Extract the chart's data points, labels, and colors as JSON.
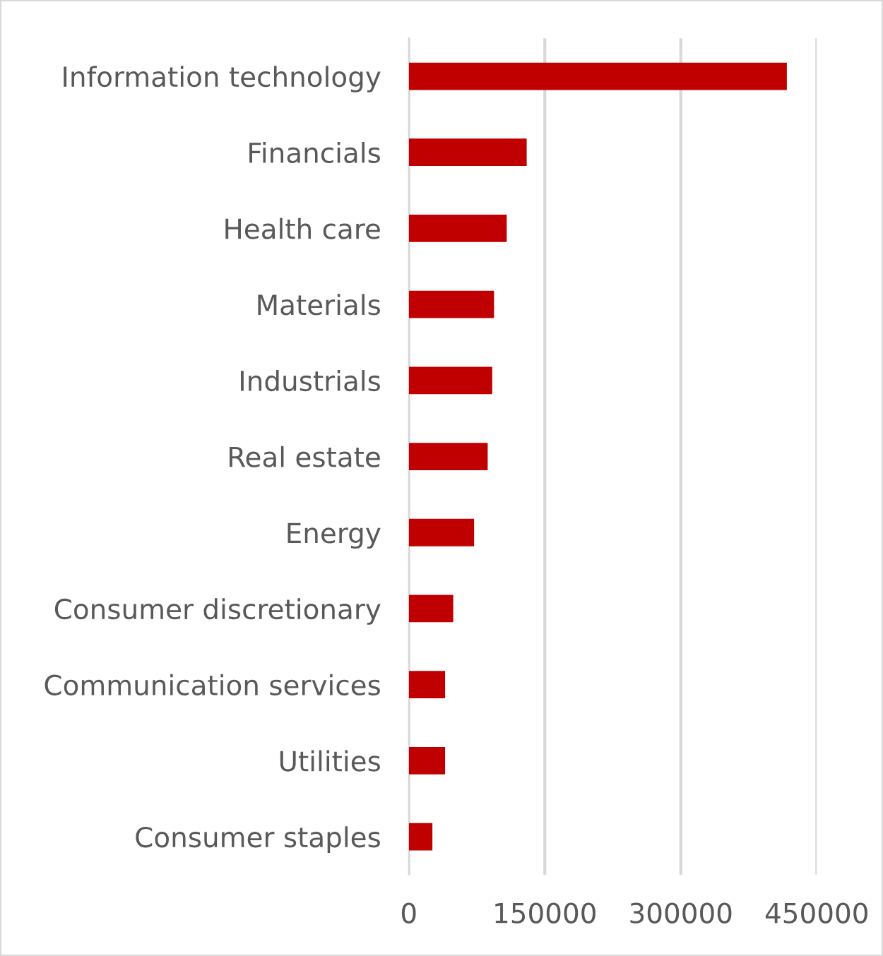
{
  "chart_data": {
    "type": "bar",
    "orientation": "horizontal",
    "categories": [
      "Information technology",
      "Financials",
      "Health care",
      "Materials",
      "Industrials",
      "Real estate",
      "Energy",
      "Consumer discretionary",
      "Communication services",
      "Utilities",
      "Consumer staples"
    ],
    "values": [
      417000,
      130000,
      108000,
      94000,
      92000,
      87000,
      72000,
      49000,
      40000,
      40000,
      26000
    ],
    "color": "#c00000",
    "xlim": [
      0,
      450000
    ],
    "xticks": [
      0,
      150000,
      300000,
      450000
    ],
    "grid": "x",
    "legend": false
  }
}
